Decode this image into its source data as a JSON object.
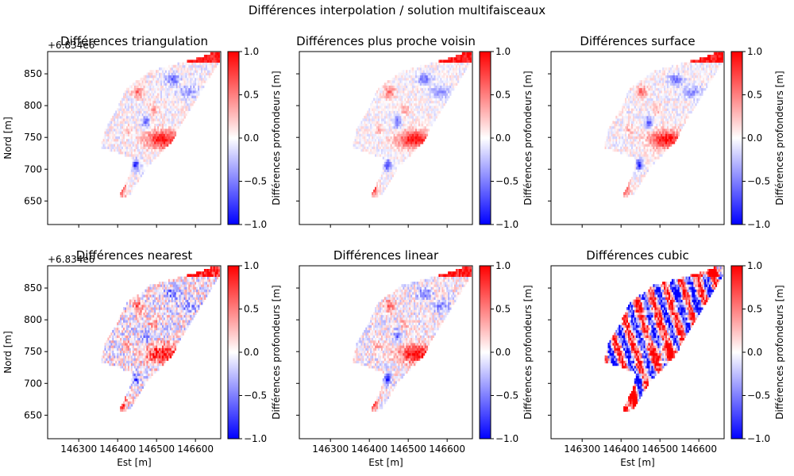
{
  "suptitle": "Différences interpolation / solution multifaisceaux",
  "chart_data": {
    "type": "heatmap",
    "colormap": "bwr",
    "colors": {
      "negative": "#0000ff",
      "zero": "#ffffff",
      "positive": "#ff0000"
    },
    "shared": {
      "xlim": [
        146220,
        146665
      ],
      "ylim": [
        613,
        885
      ],
      "x_ticks": [
        146300,
        146400,
        146500,
        146600
      ],
      "y_ticks": [
        650,
        700,
        750,
        800,
        850
      ],
      "y_offset_label": "+6.834e6",
      "xlabel": "Est [m]",
      "ylabel": "Nord [m]",
      "cbar_label": "Différences profondeurs [m]",
      "cbar_range": [
        -1.0,
        1.0
      ],
      "cbar_ticks": [
        "-1.0",
        "-0.5",
        "0.0",
        "0.5",
        "1.0"
      ],
      "cbar_tick_values": [
        -1.0,
        -0.5,
        0.0,
        0.5,
        1.0
      ]
    },
    "panels": [
      {
        "title": "Différences triangulation",
        "noise": 0.22
      },
      {
        "title": "Différences plus proche voisin",
        "noise": 0.18
      },
      {
        "title": "Différences surface",
        "noise": 0.2
      },
      {
        "title": "Différences nearest",
        "noise": 0.42
      },
      {
        "title": "Différences linear",
        "noise": 0.3
      },
      {
        "title": "Différences cubic",
        "noise": 0.6,
        "cubic": true
      }
    ]
  }
}
